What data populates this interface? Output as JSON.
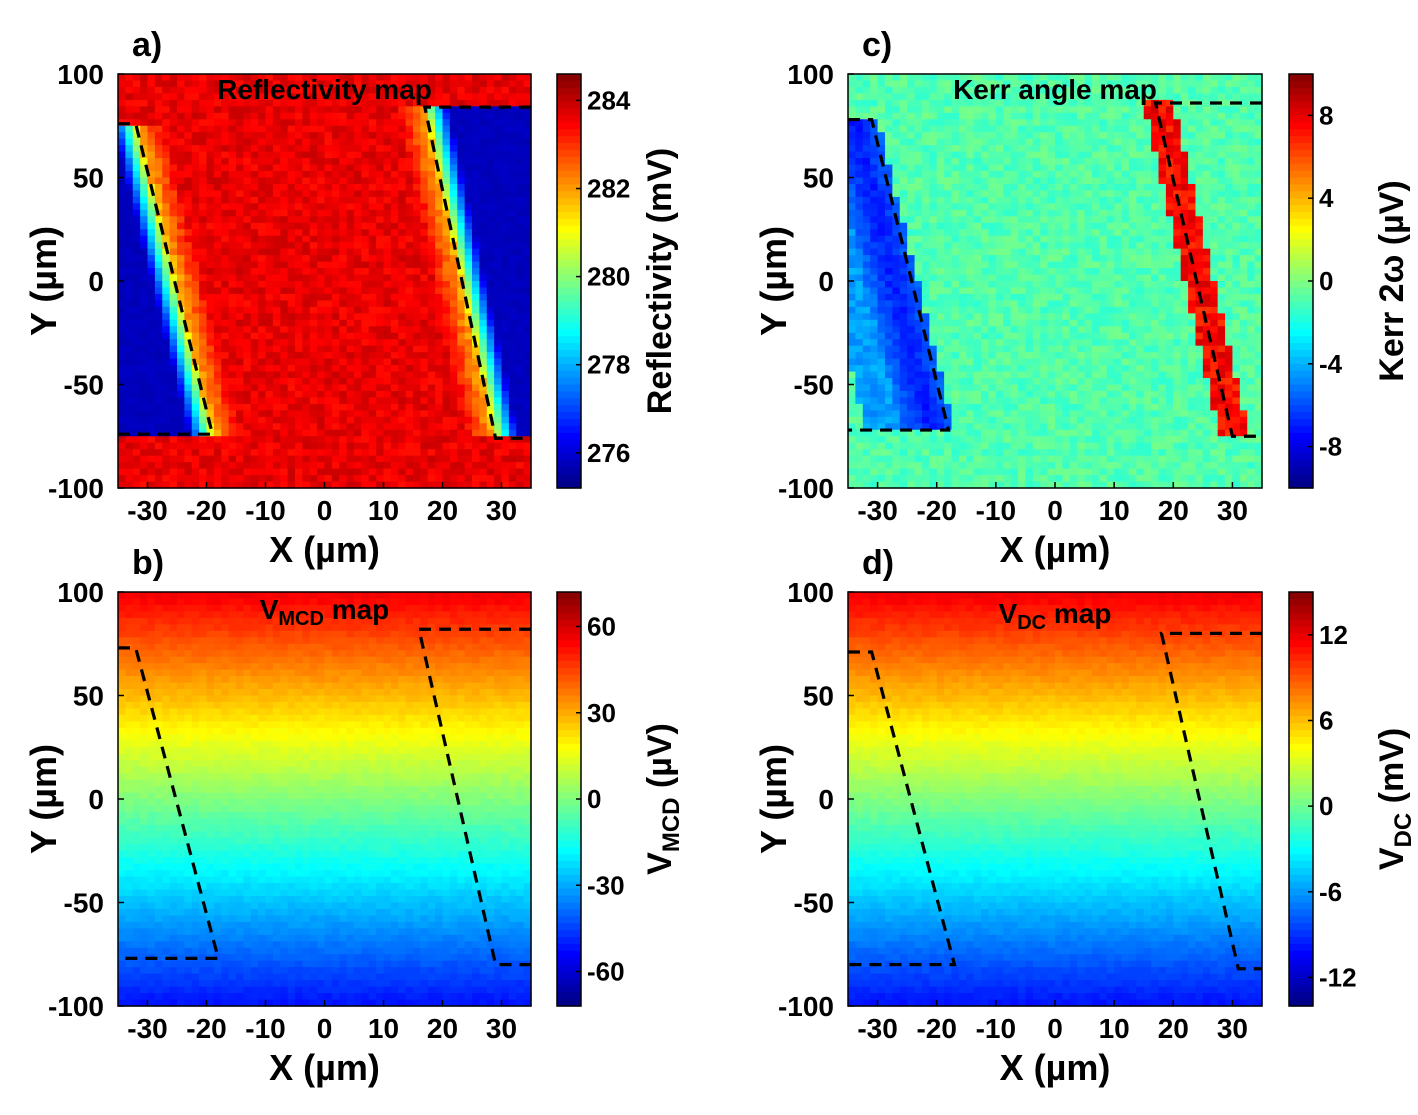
{
  "jet_colors": [
    "#00008f",
    "#0000ff",
    "#0080ff",
    "#00ffff",
    "#80ff80",
    "#ffff00",
    "#ff8000",
    "#ff0000",
    "#800000"
  ],
  "chart_data": [
    {
      "panel": "a)",
      "type": "heatmap",
      "title": "Reflectivity map",
      "xlabel": "X (µm)",
      "ylabel": "Y (µm)",
      "xlim": [
        -35,
        35
      ],
      "ylim": [
        -100,
        100
      ],
      "xticks": [
        -30,
        -20,
        -10,
        0,
        10,
        20,
        30
      ],
      "yticks": [
        -100,
        -50,
        0,
        50,
        100
      ],
      "colorbar": {
        "label": "Reflectivity (mV)",
        "label_sub": "",
        "range": [
          275.2,
          284.6
        ],
        "ticks": [
          276,
          278,
          280,
          282,
          284
        ]
      },
      "field_model": "two_blue_wells_on_red",
      "dashed_lines": [
        [
          [
            -35,
            76
          ],
          [
            -32,
            76
          ],
          [
            -19,
            -74
          ],
          [
            -35,
            -74
          ]
        ],
        [
          [
            35,
            84
          ],
          [
            17,
            84
          ],
          [
            29,
            -76
          ],
          [
            35,
            -76
          ]
        ]
      ]
    },
    {
      "panel": "b)",
      "type": "heatmap",
      "title": "V",
      "title_sub": "MCD",
      "title_rest": " map",
      "xlabel": "X (µm)",
      "ylabel": "Y (µm)",
      "xlim": [
        -35,
        35
      ],
      "ylim": [
        -100,
        100
      ],
      "xticks": [
        -30,
        -20,
        -10,
        0,
        10,
        20,
        30
      ],
      "yticks": [
        -100,
        -50,
        0,
        50,
        100
      ],
      "colorbar": {
        "label": "V",
        "label_sub": "MCD",
        "label_rest": " (µV)",
        "range": [
          -72,
          72
        ],
        "ticks": [
          -60,
          -30,
          0,
          30,
          60
        ]
      },
      "field_model": "vertical_gradient",
      "dashed_lines": [
        [
          [
            -35,
            73
          ],
          [
            -32,
            73
          ],
          [
            -18,
            -77
          ],
          [
            -35,
            -77
          ]
        ],
        [
          [
            35,
            82
          ],
          [
            16,
            82
          ],
          [
            29,
            -80
          ],
          [
            35,
            -80
          ]
        ]
      ]
    },
    {
      "panel": "c)",
      "type": "heatmap",
      "title": "Kerr angle map",
      "xlabel": "X (µm)",
      "ylabel": "Y (µm)",
      "xlim": [
        -35,
        35
      ],
      "ylim": [
        -100,
        100
      ],
      "xticks": [
        -30,
        -20,
        -10,
        0,
        10,
        20,
        30
      ],
      "yticks": [
        -100,
        -50,
        0,
        50,
        100
      ],
      "colorbar": {
        "label": "Kerr 2ω (µV)",
        "label_sub": "",
        "range": [
          -10,
          10
        ],
        "ticks": [
          -8,
          -4,
          0,
          4,
          8
        ]
      },
      "field_model": "edge_lines",
      "dashed_lines": [
        [
          [
            -35,
            78
          ],
          [
            -31,
            78
          ],
          [
            -18,
            -72
          ],
          [
            -35,
            -72
          ]
        ],
        [
          [
            35,
            86
          ],
          [
            17,
            86
          ],
          [
            30,
            -75
          ],
          [
            35,
            -75
          ]
        ]
      ]
    },
    {
      "panel": "d)",
      "type": "heatmap",
      "title": "V",
      "title_sub": "DC",
      "title_rest": " map",
      "xlabel": "X (µm)",
      "ylabel": "Y (µm)",
      "xlim": [
        -35,
        35
      ],
      "ylim": [
        -100,
        100
      ],
      "xticks": [
        -30,
        -20,
        -10,
        0,
        10,
        20,
        30
      ],
      "yticks": [
        -100,
        -50,
        0,
        50,
        100
      ],
      "colorbar": {
        "label": "V",
        "label_sub": "DC",
        "label_rest": " (mV)",
        "range": [
          -14,
          15
        ],
        "ticks": [
          -12,
          -6,
          0,
          6,
          12
        ]
      },
      "field_model": "vertical_gradient",
      "dashed_lines": [
        [
          [
            -35,
            71
          ],
          [
            -31,
            71
          ],
          [
            -17,
            -80
          ],
          [
            -35,
            -80
          ]
        ],
        [
          [
            35,
            80
          ],
          [
            18,
            80
          ],
          [
            31,
            -82
          ],
          [
            35,
            -82
          ]
        ]
      ]
    }
  ]
}
